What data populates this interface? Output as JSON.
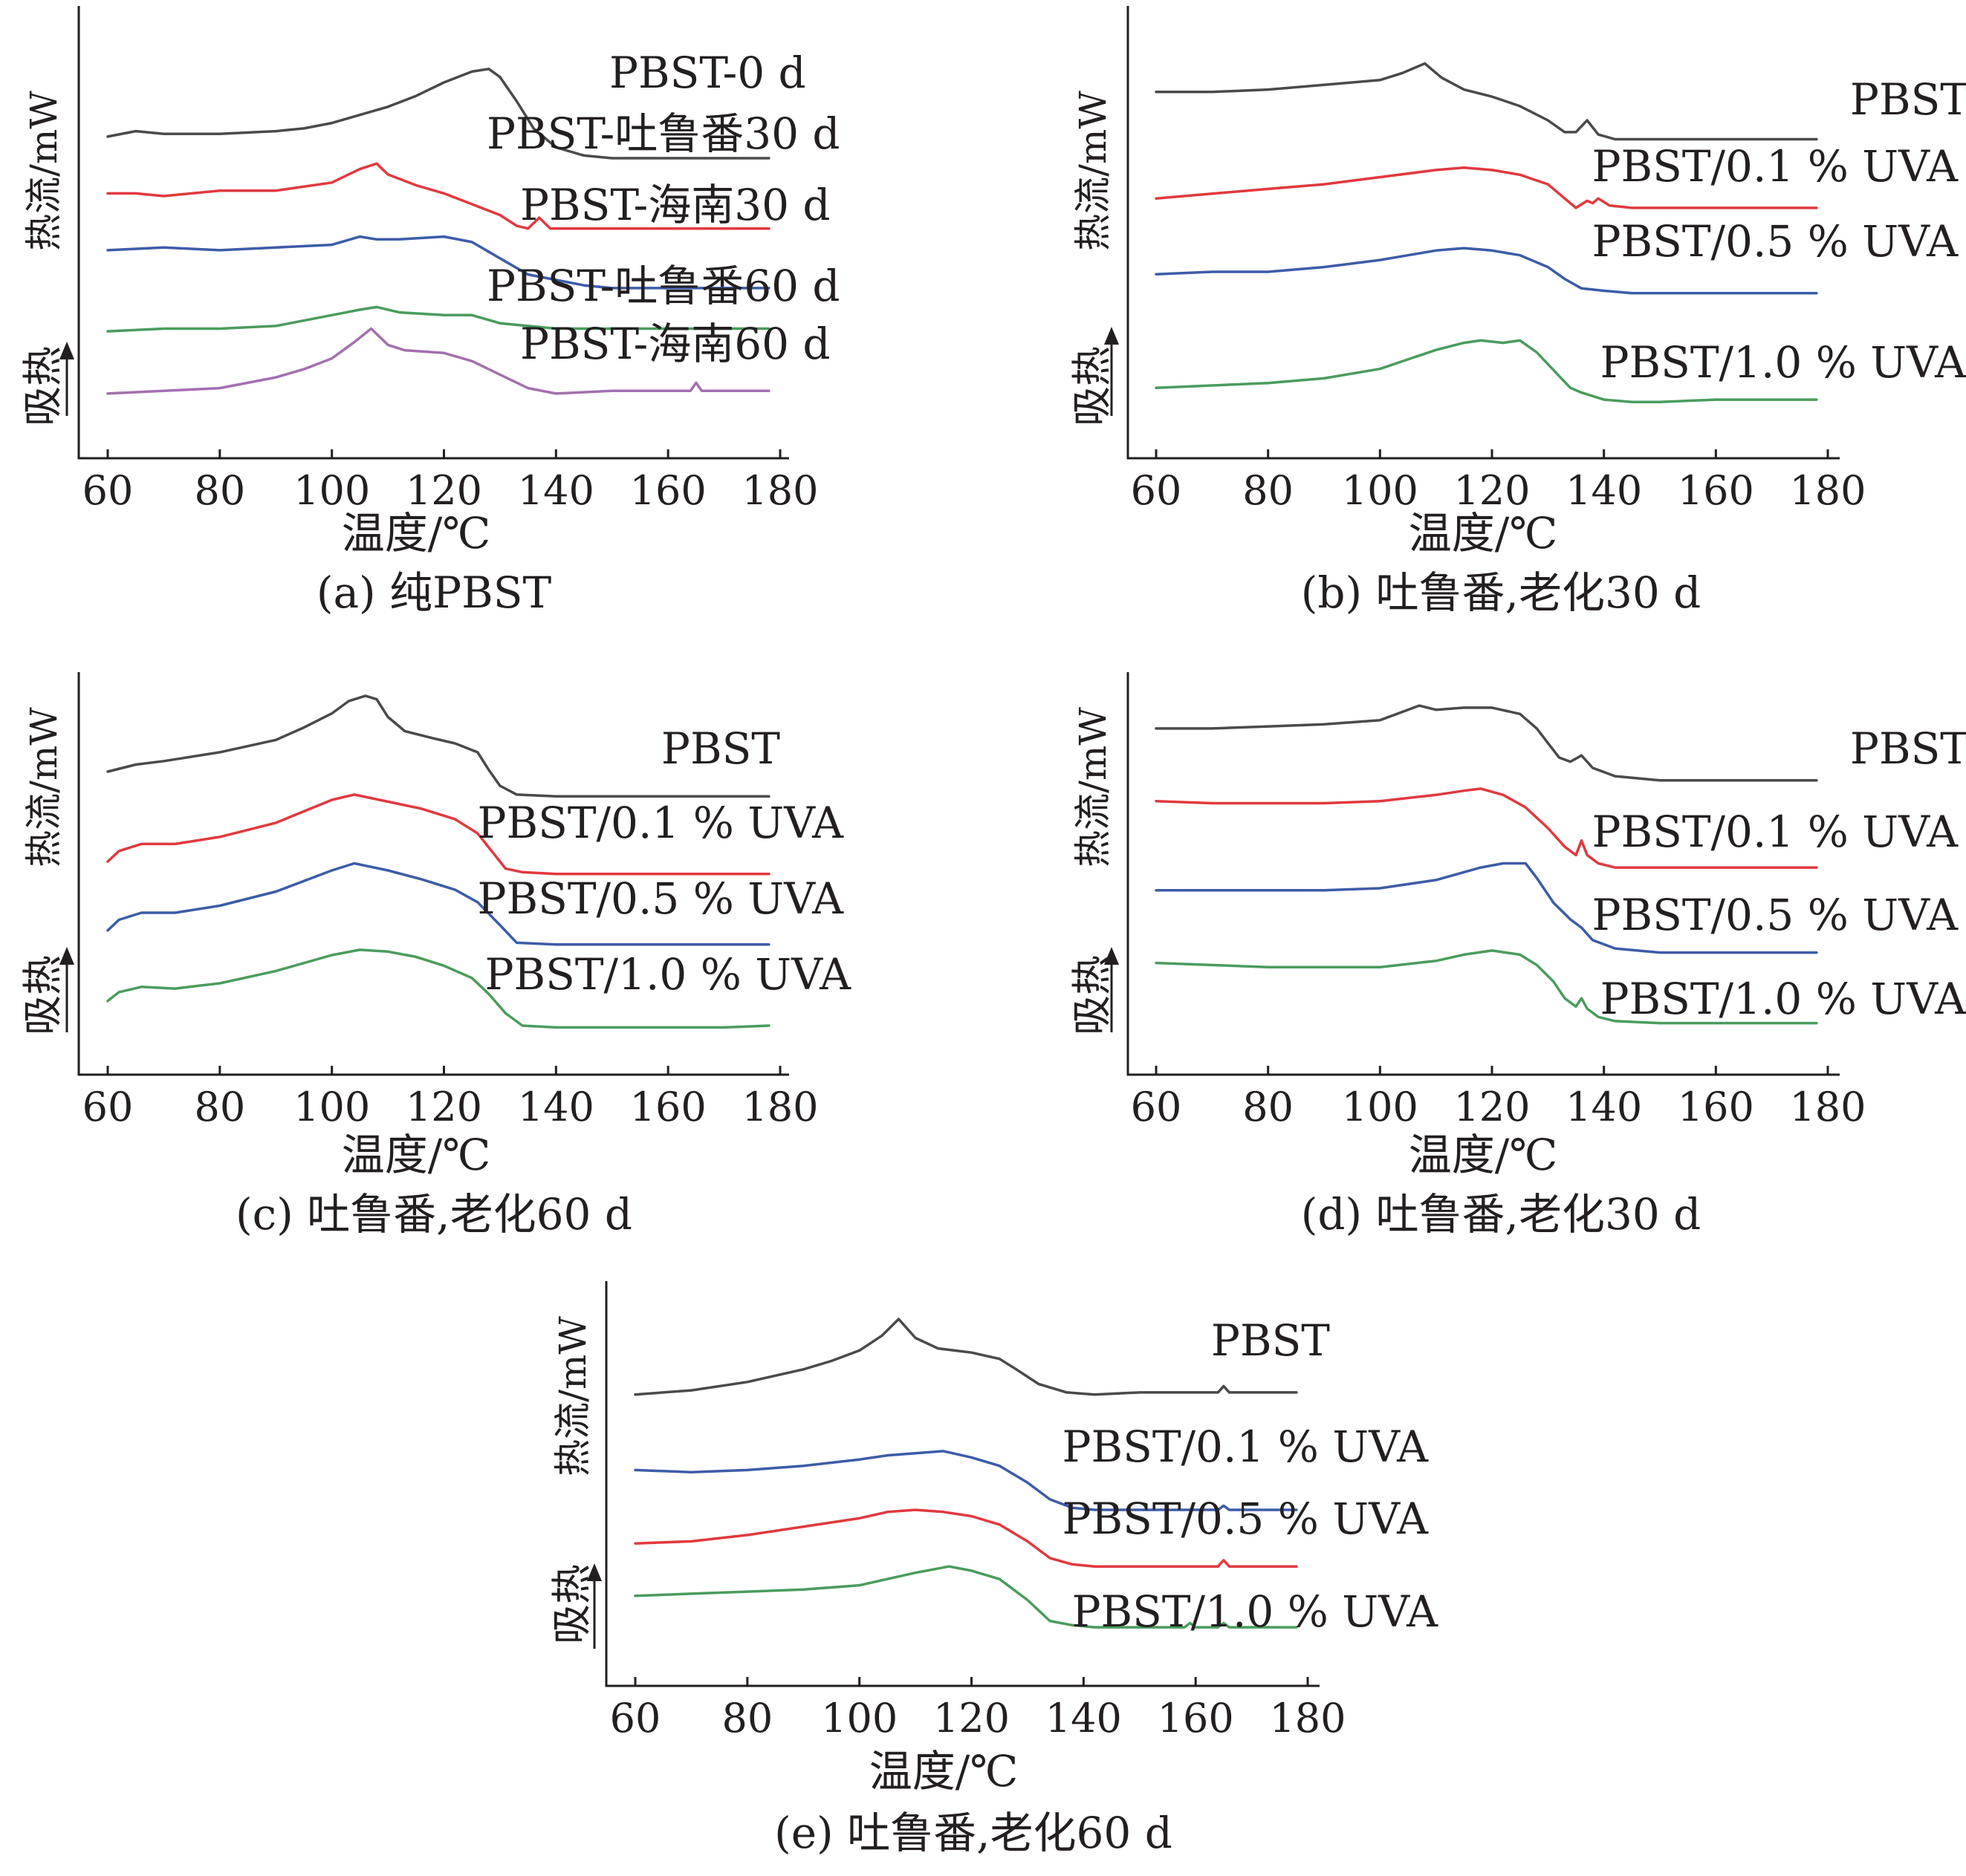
{
  "figure": {
    "xlabel": "温度/℃",
    "ylabel": "热流/mW",
    "endo_label": "吸热",
    "panels": [
      {
        "caption": "(a) 纯PBST"
      },
      {
        "caption": "(b) 吐鲁番,老化30 d"
      },
      {
        "caption": "(c) 吐鲁番,老化60 d"
      },
      {
        "caption": "(d) 吐鲁番,老化30 d"
      },
      {
        "caption": "(e) 吐鲁番,老化60 d"
      }
    ]
  },
  "chart_data": [
    {
      "type": "line",
      "title": "(a) 纯PBST",
      "xlabel": "温度/℃",
      "ylabel": "热流/mW",
      "xlim": [
        60,
        180
      ],
      "xticks": [
        60,
        80,
        100,
        120,
        140,
        160,
        180
      ],
      "grid": false,
      "series": [
        {
          "name": "PBST-0 d",
          "color": "#4a4a4a",
          "x": [
            60,
            65,
            70,
            80,
            90,
            95,
            100,
            105,
            110,
            115,
            120,
            125,
            128,
            130,
            133,
            136,
            140,
            145,
            150,
            160,
            170,
            178
          ],
          "y": [
            9.1,
            9.3,
            9.2,
            9.2,
            9.3,
            9.4,
            9.6,
            9.9,
            10.2,
            10.6,
            11.1,
            11.5,
            11.6,
            11.3,
            10.4,
            9.4,
            8.7,
            8.4,
            8.3,
            8.3,
            8.3,
            8.3
          ]
        },
        {
          "name": "PBST-吐鲁番30 d",
          "color": "#e0393e",
          "x": [
            60,
            65,
            70,
            80,
            90,
            100,
            105,
            108,
            110,
            115,
            120,
            125,
            130,
            133,
            135,
            137,
            139,
            142,
            150,
            160,
            170,
            178
          ],
          "y": [
            7.0,
            7.0,
            6.9,
            7.1,
            7.1,
            7.4,
            7.9,
            8.1,
            7.7,
            7.3,
            7.0,
            6.6,
            6.2,
            5.8,
            5.7,
            6.1,
            5.7,
            5.7,
            5.7,
            5.7,
            5.7,
            5.7
          ]
        },
        {
          "name": "PBST-海南30 d",
          "color": "#3c5ca7",
          "x": [
            60,
            70,
            80,
            90,
            100,
            105,
            108,
            112,
            120,
            125,
            130,
            135,
            140,
            145,
            150,
            160,
            170,
            178
          ],
          "y": [
            4.9,
            5.0,
            4.9,
            5.0,
            5.1,
            5.4,
            5.3,
            5.3,
            5.4,
            5.2,
            4.6,
            4.0,
            3.8,
            3.6,
            3.5,
            3.5,
            3.5,
            3.5
          ]
        },
        {
          "name": "PBST-吐鲁番60 d",
          "color": "#4a9c5c",
          "x": [
            60,
            70,
            80,
            90,
            100,
            105,
            108,
            112,
            120,
            125,
            130,
            140,
            150,
            160,
            170,
            178
          ],
          "y": [
            1.9,
            2.0,
            2.0,
            2.1,
            2.5,
            2.7,
            2.8,
            2.6,
            2.5,
            2.5,
            2.2,
            2.0,
            2.0,
            2.0,
            2.0,
            2.0
          ]
        },
        {
          "name": "PBST-海南60 d",
          "color": "#a46fb0",
          "x": [
            60,
            70,
            80,
            85,
            90,
            95,
            100,
            104,
            107,
            110,
            113,
            120,
            125,
            130,
            135,
            140,
            150,
            160,
            164,
            165,
            166,
            170,
            178
          ],
          "y": [
            -0.4,
            -0.3,
            -0.2,
            0.0,
            0.2,
            0.5,
            0.9,
            1.5,
            2.0,
            1.4,
            1.2,
            1.1,
            0.8,
            0.3,
            -0.2,
            -0.4,
            -0.3,
            -0.3,
            -0.3,
            0.0,
            -0.3,
            -0.3,
            -0.3
          ]
        }
      ]
    },
    {
      "type": "line",
      "title": "(b) 吐鲁番,老化30 d",
      "xlabel": "温度/℃",
      "ylabel": "热流/mW",
      "xlim": [
        60,
        180
      ],
      "xticks": [
        60,
        80,
        100,
        120,
        140,
        160,
        180
      ],
      "grid": false,
      "series": [
        {
          "name": "PBST",
          "color": "#4a4a4a",
          "x": [
            60,
            70,
            80,
            90,
            100,
            104,
            108,
            111,
            115,
            120,
            125,
            130,
            133,
            135,
            137,
            139,
            142,
            150,
            160,
            170,
            178
          ],
          "y": [
            10.5,
            10.5,
            10.6,
            10.8,
            11.0,
            11.3,
            11.7,
            11.1,
            10.6,
            10.3,
            9.9,
            9.3,
            8.8,
            8.8,
            9.3,
            8.7,
            8.5,
            8.5,
            8.5,
            8.5,
            8.5
          ]
        },
        {
          "name": "PBST/0.1 % UVA",
          "color": "#e0393e",
          "x": [
            60,
            70,
            80,
            90,
            100,
            110,
            115,
            120,
            125,
            130,
            133,
            135,
            137,
            138,
            139,
            141,
            145,
            150,
            160,
            170,
            178
          ],
          "y": [
            6.0,
            6.2,
            6.4,
            6.6,
            6.9,
            7.2,
            7.3,
            7.2,
            7.0,
            6.6,
            6.0,
            5.6,
            5.9,
            5.8,
            6.0,
            5.7,
            5.6,
            5.6,
            5.6,
            5.6,
            5.6
          ]
        },
        {
          "name": "PBST/0.5 % UVA",
          "color": "#3c5ca7",
          "x": [
            60,
            70,
            80,
            90,
            100,
            105,
            110,
            115,
            120,
            125,
            130,
            133,
            136,
            140,
            145,
            150,
            160,
            170,
            178
          ],
          "y": [
            2.8,
            2.9,
            2.9,
            3.1,
            3.4,
            3.6,
            3.8,
            3.9,
            3.8,
            3.6,
            3.1,
            2.6,
            2.2,
            2.1,
            2.0,
            2.0,
            2.0,
            2.0,
            2.0
          ]
        },
        {
          "name": "PBST/1.0 % UVA",
          "color": "#4a9c5c",
          "x": [
            60,
            70,
            80,
            90,
            100,
            105,
            110,
            115,
            118,
            122,
            125,
            128,
            130,
            132,
            134,
            136,
            140,
            145,
            150,
            160,
            170,
            178
          ],
          "y": [
            -2.0,
            -1.9,
            -1.8,
            -1.6,
            -1.2,
            -0.8,
            -0.4,
            -0.1,
            0.0,
            -0.1,
            0.0,
            -0.5,
            -1.0,
            -1.5,
            -2.0,
            -2.2,
            -2.5,
            -2.6,
            -2.6,
            -2.5,
            -2.5,
            -2.5
          ]
        }
      ]
    },
    {
      "type": "line",
      "title": "(c) 吐鲁番,老化60 d",
      "xlabel": "温度/℃",
      "ylabel": "热流/mW",
      "xlim": [
        60,
        180
      ],
      "xticks": [
        60,
        80,
        100,
        120,
        140,
        160,
        180
      ],
      "grid": false,
      "series": [
        {
          "name": "PBST",
          "color": "#4a4a4a",
          "x": [
            60,
            65,
            70,
            80,
            90,
            95,
            100,
            103,
            106,
            108,
            110,
            113,
            118,
            122,
            126,
            128,
            130,
            133,
            140,
            150,
            160,
            170,
            178
          ],
          "y": [
            10.2,
            10.6,
            10.8,
            11.3,
            12.0,
            12.7,
            13.5,
            14.2,
            14.5,
            14.3,
            13.3,
            12.5,
            12.1,
            11.8,
            11.3,
            10.3,
            9.4,
            8.9,
            8.8,
            8.8,
            8.8,
            8.8,
            8.8
          ]
        },
        {
          "name": "PBST/0.1 % UVA",
          "color": "#e0393e",
          "x": [
            60,
            62,
            66,
            72,
            80,
            90,
            100,
            104,
            110,
            116,
            122,
            126,
            129,
            131,
            134,
            140,
            150,
            160,
            170,
            178
          ],
          "y": [
            5.1,
            5.7,
            6.1,
            6.1,
            6.5,
            7.3,
            8.6,
            8.9,
            8.5,
            8.1,
            7.5,
            6.7,
            5.5,
            4.7,
            4.5,
            4.4,
            4.4,
            4.4,
            4.4,
            4.4
          ]
        },
        {
          "name": "PBST/0.5 % UVA",
          "color": "#3c5ca7",
          "x": [
            60,
            62,
            66,
            72,
            80,
            90,
            100,
            104,
            110,
            116,
            122,
            126,
            130,
            133,
            140,
            150,
            160,
            170,
            178
          ],
          "y": [
            1.2,
            1.8,
            2.2,
            2.2,
            2.6,
            3.4,
            4.6,
            5.0,
            4.6,
            4.1,
            3.5,
            2.8,
            1.5,
            0.5,
            0.4,
            0.4,
            0.4,
            0.4,
            0.4
          ]
        },
        {
          "name": "PBST/1.0 % UVA",
          "color": "#4a9c5c",
          "x": [
            60,
            62,
            66,
            72,
            80,
            90,
            100,
            105,
            110,
            115,
            120,
            125,
            128,
            131,
            134,
            140,
            150,
            160,
            170,
            178
          ],
          "y": [
            -2.8,
            -2.3,
            -2.0,
            -2.1,
            -1.8,
            -1.1,
            -0.2,
            0.1,
            0.0,
            -0.3,
            -0.8,
            -1.5,
            -2.4,
            -3.5,
            -4.2,
            -4.3,
            -4.3,
            -4.3,
            -4.3,
            -4.2
          ]
        }
      ]
    },
    {
      "type": "line",
      "title": "(d) 吐鲁番,老化30 d",
      "xlabel": "温度/℃",
      "ylabel": "热流/mW",
      "xlim": [
        60,
        180
      ],
      "xticks": [
        60,
        80,
        100,
        120,
        140,
        160,
        180
      ],
      "grid": false,
      "series": [
        {
          "name": "PBST",
          "color": "#4a4a4a",
          "x": [
            60,
            70,
            80,
            90,
            100,
            104,
            107,
            110,
            115,
            120,
            125,
            128,
            132,
            134,
            136,
            138,
            142,
            150,
            160,
            170,
            178
          ],
          "y": [
            11.0,
            11.0,
            11.1,
            11.2,
            11.4,
            11.8,
            12.1,
            11.9,
            12.0,
            12.0,
            11.7,
            11.0,
            9.6,
            9.4,
            9.7,
            9.1,
            8.7,
            8.5,
            8.5,
            8.5,
            8.5
          ]
        },
        {
          "name": "PBST/0.1 % UVA",
          "color": "#e0393e",
          "x": [
            60,
            70,
            80,
            90,
            100,
            110,
            115,
            118,
            122,
            126,
            130,
            133,
            135,
            136,
            137,
            139,
            142,
            150,
            160,
            170,
            178
          ],
          "y": [
            7.5,
            7.4,
            7.4,
            7.4,
            7.5,
            7.8,
            8.0,
            8.1,
            7.8,
            7.2,
            6.2,
            5.3,
            4.9,
            5.6,
            4.9,
            4.5,
            4.3,
            4.3,
            4.3,
            4.3,
            4.3
          ]
        },
        {
          "name": "PBST/0.5 % UVA",
          "color": "#3c5ca7",
          "x": [
            60,
            70,
            80,
            90,
            100,
            110,
            118,
            122,
            126,
            128,
            131,
            134,
            136,
            138,
            142,
            150,
            160,
            170,
            178
          ],
          "y": [
            3.2,
            3.2,
            3.2,
            3.2,
            3.3,
            3.7,
            4.3,
            4.5,
            4.5,
            3.8,
            2.6,
            1.8,
            1.4,
            0.8,
            0.4,
            0.2,
            0.2,
            0.2,
            0.2
          ]
        },
        {
          "name": "PBST/1.0 % UVA",
          "color": "#4a9c5c",
          "x": [
            60,
            70,
            80,
            90,
            100,
            110,
            115,
            120,
            125,
            128,
            131,
            133,
            135,
            136,
            137,
            139,
            142,
            150,
            160,
            170,
            178
          ],
          "y": [
            -0.3,
            -0.4,
            -0.5,
            -0.5,
            -0.5,
            -0.2,
            0.1,
            0.3,
            0.1,
            -0.4,
            -1.2,
            -2.0,
            -2.4,
            -2.0,
            -2.5,
            -2.9,
            -3.1,
            -3.2,
            -3.2,
            -3.2,
            -3.2
          ]
        }
      ]
    },
    {
      "type": "line",
      "title": "(e) 吐鲁番,老化60 d",
      "xlabel": "温度/℃",
      "ylabel": "热流/mW",
      "xlim": [
        60,
        180
      ],
      "xticks": [
        60,
        80,
        100,
        120,
        140,
        160,
        180
      ],
      "grid": false,
      "series": [
        {
          "name": "PBST",
          "color": "#4a4a4a",
          "x": [
            60,
            70,
            80,
            85,
            90,
            95,
            100,
            104,
            107,
            110,
            114,
            120,
            125,
            128,
            132,
            137,
            142,
            150,
            160,
            164,
            165,
            166,
            170,
            178
          ],
          "y": [
            10.8,
            11.0,
            11.4,
            11.7,
            12.0,
            12.4,
            12.9,
            13.6,
            14.4,
            13.5,
            13.0,
            12.8,
            12.5,
            12.0,
            11.3,
            10.9,
            10.8,
            10.9,
            10.9,
            10.9,
            11.2,
            10.9,
            10.9,
            10.9
          ]
        },
        {
          "name": "PBST/0.1 % UVA",
          "color": "#3c5ca7",
          "x": [
            60,
            70,
            80,
            90,
            100,
            105,
            110,
            115,
            120,
            125,
            130,
            134,
            138,
            142,
            150,
            160,
            164,
            165,
            166,
            170,
            178
          ],
          "y": [
            7.2,
            7.1,
            7.2,
            7.4,
            7.7,
            7.9,
            8.0,
            8.1,
            7.8,
            7.4,
            6.6,
            5.8,
            5.4,
            5.3,
            5.3,
            5.3,
            5.3,
            5.5,
            5.3,
            5.3,
            5.3
          ]
        },
        {
          "name": "PBST/0.5 % UVA",
          "color": "#e0393e",
          "x": [
            60,
            70,
            80,
            90,
            100,
            105,
            110,
            115,
            120,
            125,
            130,
            134,
            138,
            142,
            150,
            160,
            164,
            165,
            166,
            170,
            178
          ],
          "y": [
            3.7,
            3.8,
            4.1,
            4.5,
            4.9,
            5.2,
            5.3,
            5.2,
            5.0,
            4.6,
            3.8,
            3.0,
            2.7,
            2.6,
            2.6,
            2.6,
            2.6,
            2.9,
            2.6,
            2.6,
            2.6
          ]
        },
        {
          "name": "PBST/1.0 % UVA",
          "color": "#4a9c5c",
          "x": [
            60,
            70,
            80,
            90,
            100,
            110,
            116,
            120,
            125,
            130,
            134,
            138,
            142,
            150,
            158,
            159,
            160,
            164,
            165,
            166,
            170,
            178
          ],
          "y": [
            1.2,
            1.3,
            1.4,
            1.5,
            1.7,
            2.3,
            2.6,
            2.4,
            2.0,
            1.0,
            0.0,
            -0.2,
            -0.3,
            -0.3,
            -0.3,
            -0.1,
            -0.3,
            -0.3,
            -0.1,
            -0.3,
            -0.3,
            -0.3
          ]
        }
      ]
    }
  ]
}
